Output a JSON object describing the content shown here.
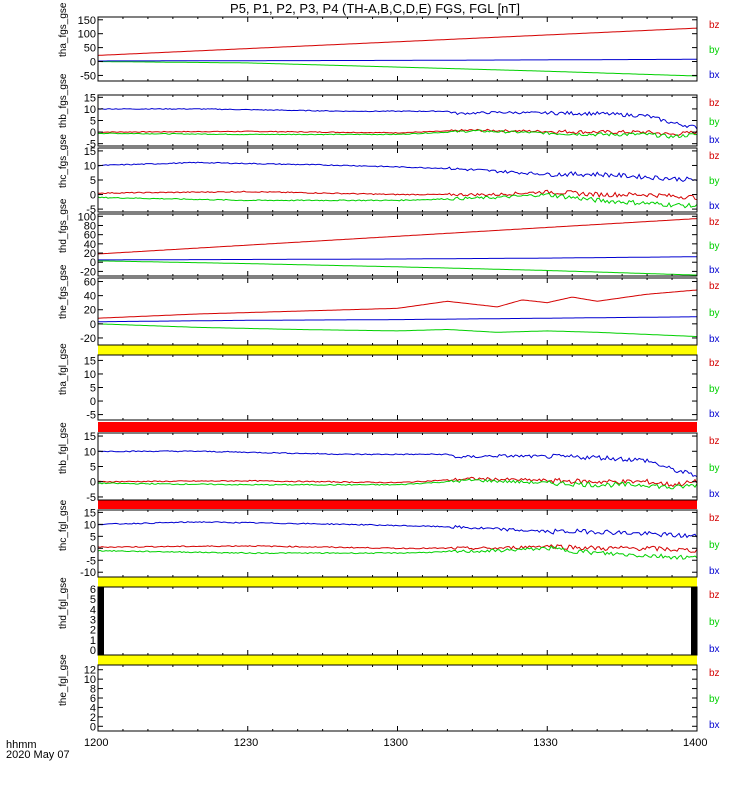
{
  "title": "P5, P1, P2, P3, P4 (TH-A,B,C,D,E) FGS, FGL [nT]",
  "footer": {
    "line1": "hhmm",
    "line2": "2020 May 07"
  },
  "colors": {
    "bz": "#d40000",
    "by": "#00d000",
    "bx": "#0000d0",
    "bar_yellow": "#ffff00",
    "bar_red": "#ff0000",
    "bar_black": "#000000"
  },
  "chart_data": {
    "type": "line",
    "x_axis": {
      "label": "hhmm",
      "ticks": [
        "1200",
        "1230",
        "1300",
        "1330",
        "1400"
      ],
      "range": [
        "12:00",
        "14:00"
      ]
    },
    "legend": [
      "bz",
      "by",
      "bx"
    ],
    "panels": [
      {
        "ylabel": "tha_fgs_gse",
        "yticks": [
          "150",
          "100",
          "50",
          "0",
          "-50"
        ],
        "ylim": [
          -70,
          160
        ],
        "series": [
          {
            "name": "bz",
            "x": [
              0,
              120
            ],
            "y": [
              22,
              120
            ]
          },
          {
            "name": "by",
            "x": [
              0,
              30,
              60,
              90,
              120
            ],
            "y": [
              0,
              -5,
              -20,
              -35,
              -52
            ]
          },
          {
            "name": "bx",
            "x": [
              0,
              30,
              60,
              90,
              120
            ],
            "y": [
              2,
              3,
              4,
              6,
              8
            ]
          }
        ]
      },
      {
        "ylabel": "thb_fgs_gse",
        "yticks": [
          "15",
          "10",
          "5",
          "0",
          "-5"
        ],
        "ylim": [
          -6,
          16
        ],
        "series": [
          {
            "name": "bz",
            "x": [
              0,
              30,
              60,
              75,
              100,
              110,
              115,
              120
            ],
            "y": [
              0,
              0.3,
              -0.3,
              0.8,
              0,
              0,
              -1,
              0
            ]
          },
          {
            "name": "by",
            "x": [
              0,
              30,
              60,
              75,
              100,
              110,
              115,
              120
            ],
            "y": [
              -0.5,
              -1,
              -1,
              0.5,
              -1,
              -1,
              -2,
              -1
            ]
          },
          {
            "name": "bx",
            "x": [
              0,
              20,
              50,
              70,
              72,
              80,
              100,
              110,
              115,
              120
            ],
            "y": [
              10,
              10,
              9,
              9,
              8,
              8.5,
              8,
              7,
              4,
              2
            ]
          }
        ]
      },
      {
        "ylabel": "thc_fgs_gse",
        "yticks": [
          "15",
          "10",
          "5",
          "0",
          "-5"
        ],
        "ylim": [
          -6,
          16
        ],
        "series": [
          {
            "name": "bz",
            "x": [
              0,
              30,
              60,
              80,
              90,
              100,
              110,
              120
            ],
            "y": [
              0.5,
              1,
              0,
              0,
              1,
              0,
              0,
              -1
            ]
          },
          {
            "name": "by",
            "x": [
              0,
              30,
              60,
              80,
              90,
              100,
              110,
              120
            ],
            "y": [
              -1,
              -2,
              -2,
              -1,
              0,
              -2,
              -3,
              -4
            ]
          },
          {
            "name": "bx",
            "x": [
              0,
              20,
              50,
              70,
              80,
              90,
              100,
              110,
              120
            ],
            "y": [
              10,
              11,
              10,
              9,
              8,
              7,
              7,
              6,
              5
            ]
          }
        ]
      },
      {
        "ylabel": "thd_fgs_gse",
        "yticks": [
          "100",
          "80",
          "60",
          "40",
          "20",
          "0",
          "-20"
        ],
        "ylim": [
          -30,
          105
        ],
        "series": [
          {
            "name": "bz",
            "x": [
              0,
              120
            ],
            "y": [
              18,
              95
            ]
          },
          {
            "name": "by",
            "x": [
              0,
              30,
              60,
              90,
              120
            ],
            "y": [
              3,
              -3,
              -10,
              -18,
              -28
            ]
          },
          {
            "name": "bx",
            "x": [
              0,
              30,
              60,
              90,
              120
            ],
            "y": [
              5,
              6,
              7,
              9,
              12
            ]
          }
        ]
      },
      {
        "ylabel": "the_fgs_gse",
        "yticks": [
          "60",
          "40",
          "20",
          "0",
          "-20"
        ],
        "ylim": [
          -30,
          65
        ],
        "series": [
          {
            "name": "bz",
            "x": [
              0,
              20,
              40,
              60,
              70,
              75,
              80,
              85,
              90,
              95,
              100,
              110,
              120
            ],
            "y": [
              8,
              14,
              18,
              22,
              32,
              28,
              24,
              34,
              30,
              38,
              32,
              42,
              48
            ]
          },
          {
            "name": "by",
            "x": [
              0,
              20,
              40,
              60,
              70,
              80,
              90,
              100,
              110,
              120
            ],
            "y": [
              0,
              -5,
              -8,
              -10,
              -8,
              -12,
              -10,
              -12,
              -15,
              -18
            ]
          },
          {
            "name": "bx",
            "x": [
              0,
              30,
              60,
              90,
              120
            ],
            "y": [
              3,
              5,
              6,
              8,
              10
            ]
          }
        ]
      },
      {
        "ylabel": "tha_fgl_gse",
        "yticks": [
          "15",
          "10",
          "5",
          "0",
          "-5"
        ],
        "ylim": [
          -7,
          17
        ],
        "series": []
      },
      {
        "ylabel": "thb_fgl_gse",
        "yticks": [
          "15",
          "10",
          "5",
          "0",
          "-5"
        ],
        "ylim": [
          -6,
          16
        ],
        "series": [
          {
            "name": "bz",
            "x": [
              0,
              30,
              60,
              75,
              100,
              110,
              115,
              120
            ],
            "y": [
              0,
              0.3,
              -0.3,
              1,
              0,
              0,
              -1,
              0
            ]
          },
          {
            "name": "by",
            "x": [
              0,
              30,
              60,
              75,
              100,
              110,
              115,
              120
            ],
            "y": [
              -0.5,
              -1,
              -1,
              0.5,
              -1,
              -1,
              -2,
              -1
            ]
          },
          {
            "name": "bx",
            "x": [
              0,
              20,
              50,
              70,
              72,
              80,
              100,
              110,
              115,
              120
            ],
            "y": [
              10,
              10,
              9,
              9,
              8,
              8.5,
              8,
              7,
              4,
              2
            ]
          }
        ]
      },
      {
        "ylabel": "thc_fgl_gse",
        "yticks": [
          "15",
          "10",
          "5",
          "0",
          "-5",
          "-10"
        ],
        "ylim": [
          -12,
          16
        ],
        "series": [
          {
            "name": "bz",
            "x": [
              0,
              30,
              60,
              80,
              90,
              100,
              110,
              120
            ],
            "y": [
              0.5,
              1,
              0,
              0,
              1,
              0,
              0,
              -1
            ]
          },
          {
            "name": "by",
            "x": [
              0,
              30,
              60,
              80,
              90,
              100,
              110,
              120
            ],
            "y": [
              -1,
              -2,
              -2,
              -1,
              0,
              -2,
              -3,
              -4
            ]
          },
          {
            "name": "bx",
            "x": [
              0,
              20,
              50,
              70,
              80,
              90,
              100,
              110,
              120
            ],
            "y": [
              10,
              11,
              10,
              9,
              8,
              7,
              7,
              6,
              5
            ]
          }
        ]
      },
      {
        "ylabel": "thd_fgl_gse",
        "yticks": [
          "6",
          "5",
          "4",
          "3",
          "2",
          "1",
          "0"
        ],
        "ylim": [
          -0.5,
          6.2
        ],
        "series": []
      },
      {
        "ylabel": "the_fgl_gse",
        "yticks": [
          "12",
          "10",
          "8",
          "6",
          "4",
          "2",
          "0"
        ],
        "ylim": [
          -1,
          13
        ],
        "series": []
      }
    ]
  }
}
